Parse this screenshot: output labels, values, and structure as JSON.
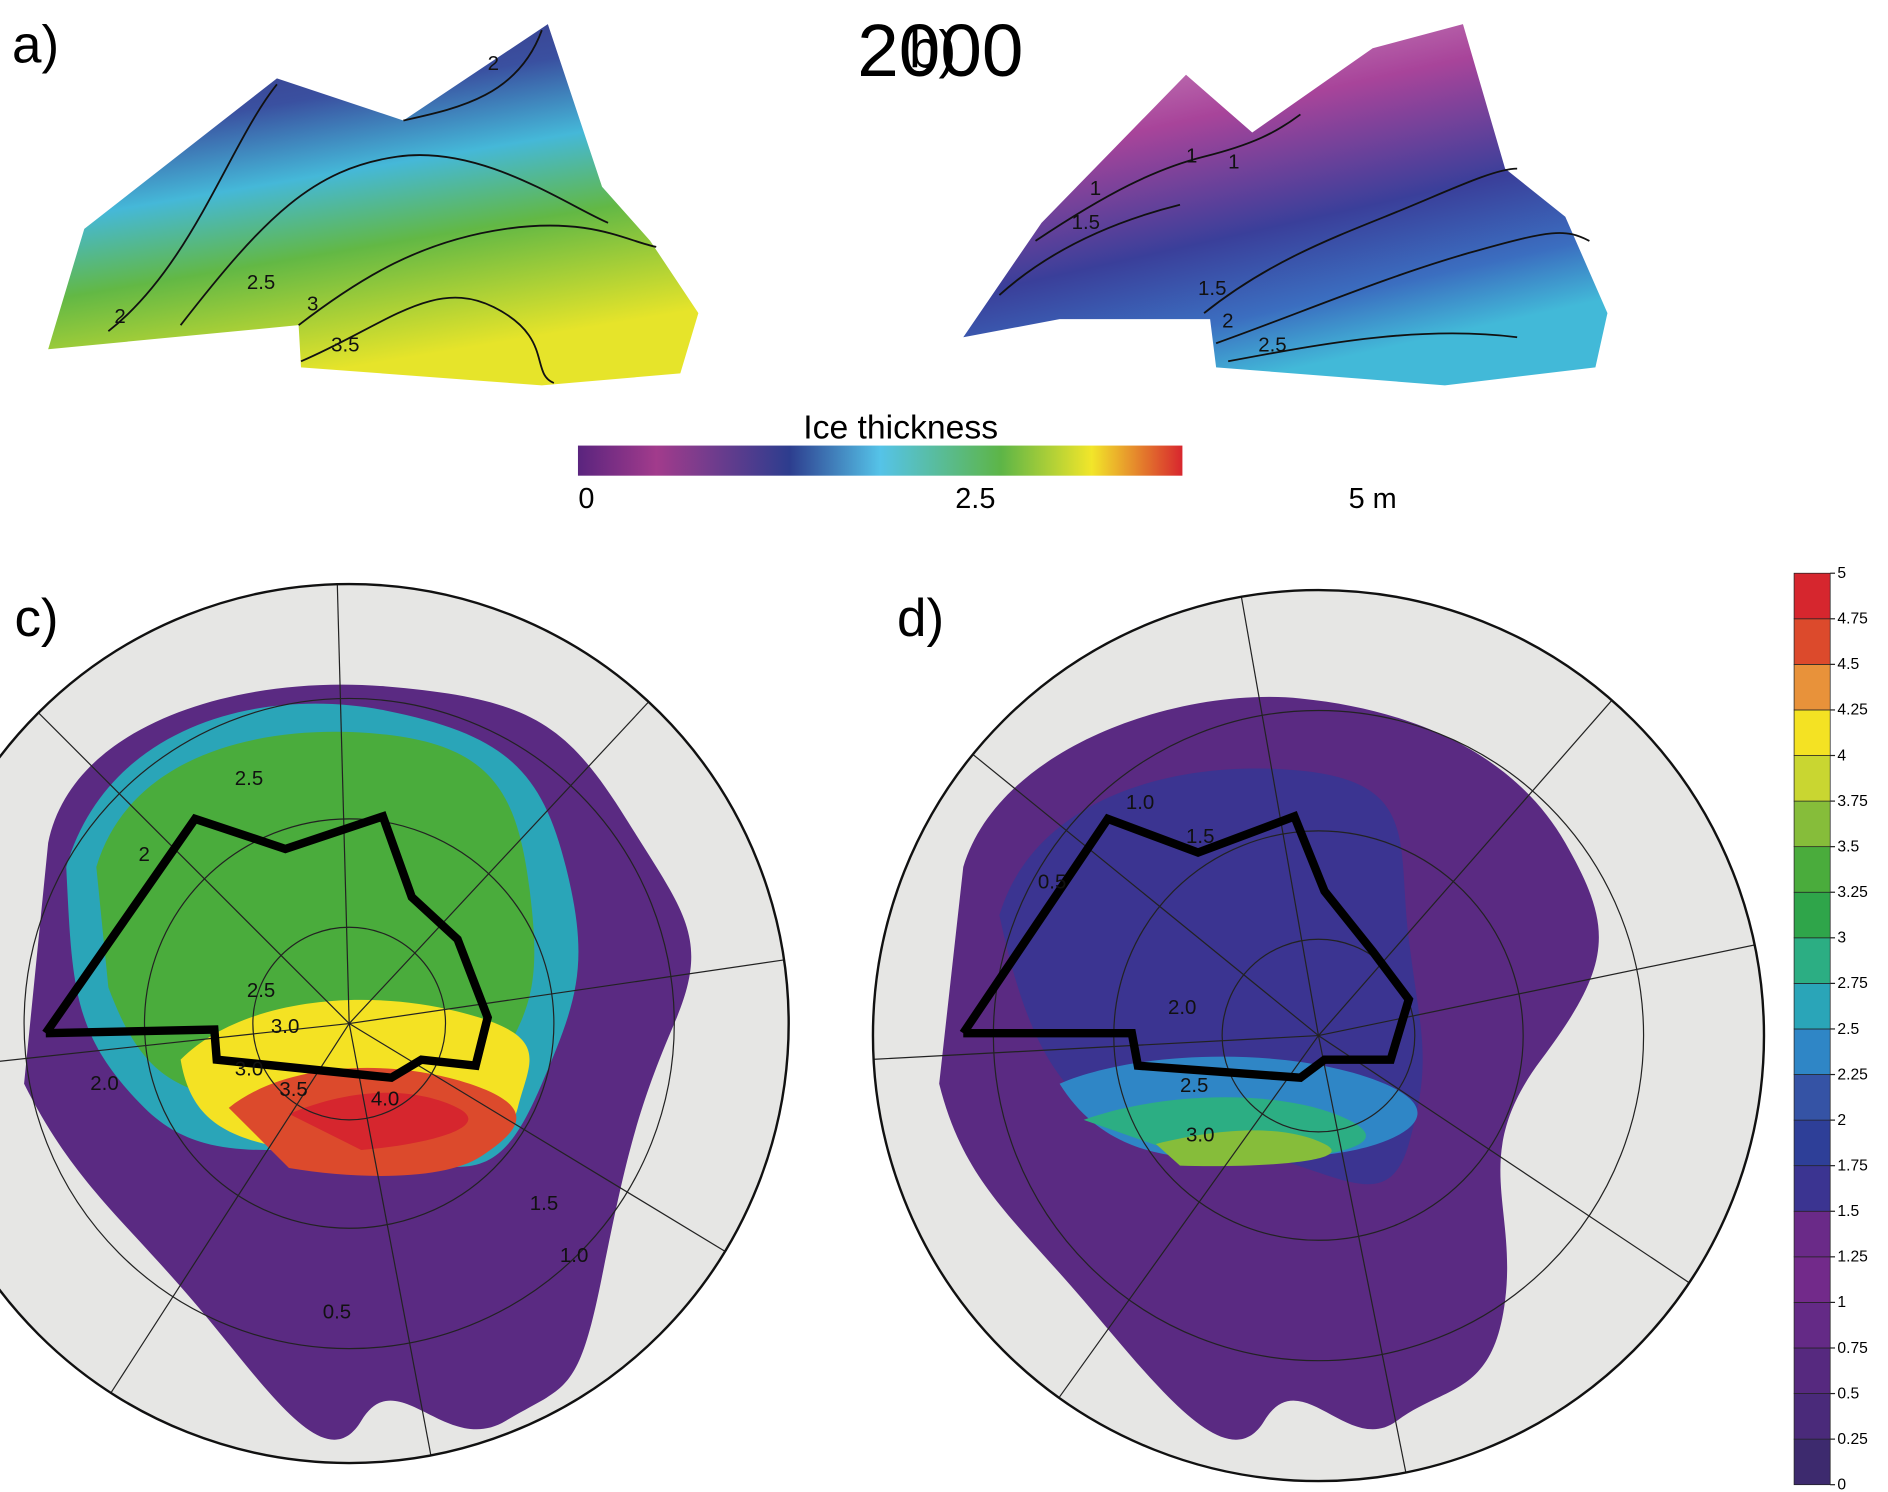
{
  "title": "2000",
  "panel_a": {
    "label": "a)",
    "contour_labels": [
      "2",
      "2",
      "2.5",
      "3",
      "3.5"
    ]
  },
  "panel_b": {
    "label": "b)",
    "contour_labels": [
      "1",
      "1",
      "1.5",
      "1",
      "1.5",
      "2",
      "2.5"
    ]
  },
  "colorbar_top": {
    "title": "Ice thickness",
    "ticks": [
      "0",
      "2.5",
      "5 m"
    ]
  },
  "panel_c": {
    "label": "c)",
    "contour_labels": [
      "2.5",
      "2",
      "2.5",
      "3.0",
      "3.0",
      "3.5",
      "4.0",
      "2.0",
      "1.5",
      "1.0",
      "0.5"
    ]
  },
  "panel_d": {
    "label": "d)",
    "contour_labels": [
      "1.0",
      "1.5",
      "0.5",
      "2.0",
      "2.5",
      "3.0"
    ]
  },
  "colorbar_right": {
    "ticks": [
      0,
      0.25,
      0.5,
      0.75,
      1,
      1.25,
      1.5,
      1.75,
      2,
      2.25,
      2.5,
      2.75,
      3,
      3.25,
      3.5,
      3.75,
      4,
      4.25,
      4.5,
      4.75,
      5
    ],
    "colors": [
      "#3d2a6e",
      "#4a2a7a",
      "#56297f",
      "#642a86",
      "#722a8a",
      "#6a2a88",
      "#3b3491",
      "#2e3f98",
      "#3553a5",
      "#2f86c6",
      "#2aa5b8",
      "#2cae83",
      "#2fa54a",
      "#4aac3c",
      "#86bd3a",
      "#c9d631",
      "#f4e223",
      "#e8923a",
      "#dc4a2c",
      "#d6262e"
    ]
  }
}
